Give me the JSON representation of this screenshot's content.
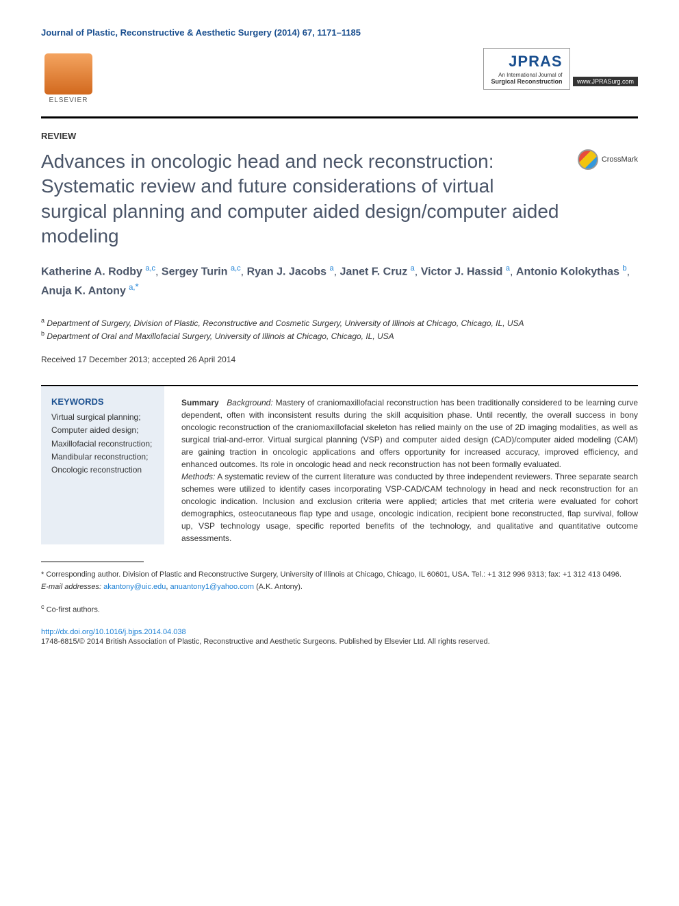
{
  "journal_header": "Journal of Plastic, Reconstructive & Aesthetic Surgery (2014) 67, 1171–1185",
  "publisher": {
    "name": "ELSEVIER"
  },
  "journal_logo": {
    "title": "JPRAS",
    "subtitle": "An International Journal of",
    "subtitle_bold": "Surgical Reconstruction",
    "url": "www.JPRASurg.com"
  },
  "crossmark_label": "CrossMark",
  "article_type": "REVIEW",
  "title": "Advances in oncologic head and neck reconstruction: Systematic review and future considerations of virtual surgical planning and computer aided design/computer aided modeling",
  "authors": [
    {
      "name": "Katherine A. Rodby",
      "affils": "a,c"
    },
    {
      "name": "Sergey Turin",
      "affils": "a,c"
    },
    {
      "name": "Ryan J. Jacobs",
      "affils": "a"
    },
    {
      "name": "Janet F. Cruz",
      "affils": "a"
    },
    {
      "name": "Victor J. Hassid",
      "affils": "a"
    },
    {
      "name": "Antonio Kolokythas",
      "affils": "b"
    },
    {
      "name": "Anuja K. Antony",
      "affils": "a,",
      "corresponding": true
    }
  ],
  "affiliations": [
    {
      "label": "a",
      "text": "Department of Surgery, Division of Plastic, Reconstructive and Cosmetic Surgery, University of Illinois at Chicago, Chicago, IL, USA"
    },
    {
      "label": "b",
      "text": "Department of Oral and Maxillofacial Surgery, University of Illinois at Chicago, Chicago, IL, USA"
    }
  ],
  "dates": "Received 17 December 2013; accepted 26 April 2014",
  "keywords": {
    "heading": "KEYWORDS",
    "items": [
      "Virtual surgical planning;",
      "Computer aided design;",
      "Maxillofacial reconstruction;",
      "Mandibular reconstruction;",
      "Oncologic reconstruction"
    ]
  },
  "abstract": {
    "summary_label": "Summary",
    "background_label": "Background:",
    "background_text": "Mastery of craniomaxillofacial reconstruction has been traditionally considered to be learning curve dependent, often with inconsistent results during the skill acquisition phase. Until recently, the overall success in bony oncologic reconstruction of the craniomaxillofacial skeleton has relied mainly on the use of 2D imaging modalities, as well as surgical trial-and-error. Virtual surgical planning (VSP) and computer aided design (CAD)/computer aided modeling (CAM) are gaining traction in oncologic applications and offers opportunity for increased accuracy, improved efficiency, and enhanced outcomes. Its role in oncologic head and neck reconstruction has not been formally evaluated.",
    "methods_label": "Methods:",
    "methods_text": "A systematic review of the current literature was conducted by three independent reviewers. Three separate search schemes were utilized to identify cases incorporating VSP-CAD/CAM technology in head and neck reconstruction for an oncologic indication. Inclusion and exclusion criteria were applied; articles that met criteria were evaluated for cohort demographics, osteocutaneous flap type and usage, oncologic indication, recipient bone reconstructed, flap survival, follow up, VSP technology usage, specific reported benefits of the technology, and qualitative and quantitative outcome assessments."
  },
  "footer": {
    "corresponding_label": "* Corresponding author.",
    "corresponding_text": "Division of Plastic and Reconstructive Surgery, University of Illinois at Chicago, Chicago, IL 60601, USA. Tel.: +1 312 996 9313; fax: +1 312 413 0496.",
    "email_label": "E-mail addresses:",
    "emails": [
      "akantony@uic.edu",
      "anuantony1@yahoo.com"
    ],
    "email_author": "(A.K. Antony).",
    "cofirst_label": "c",
    "cofirst_text": "Co-first authors."
  },
  "doi": {
    "url": "http://dx.doi.org/10.1016/j.bjps.2014.04.038",
    "copyright": "1748-6815/© 2014 British Association of Plastic, Reconstructive and Aesthetic Surgeons. Published by Elsevier Ltd. All rights reserved."
  },
  "colors": {
    "journal_blue": "#1a4f8f",
    "link_blue": "#1a7fd4",
    "title_gray": "#4a5568",
    "keywords_bg": "#e8eef5",
    "text_dark": "#333333"
  }
}
